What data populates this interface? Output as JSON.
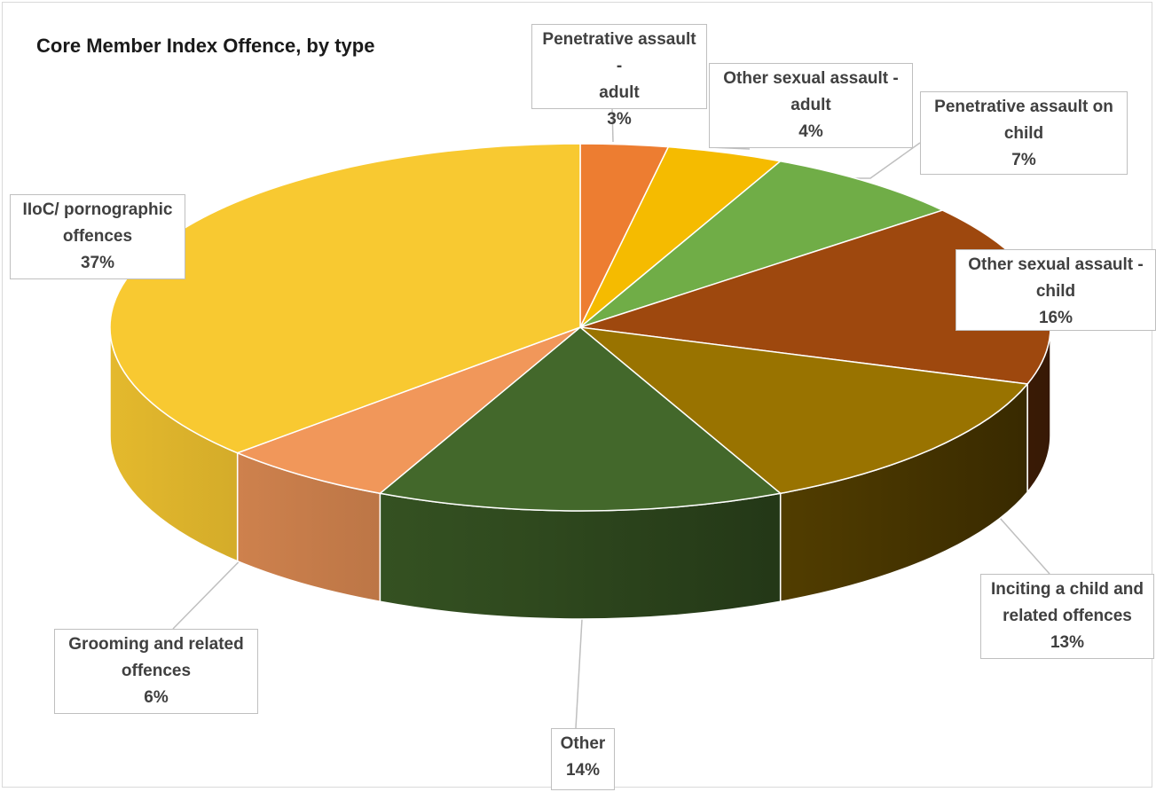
{
  "chart_data": {
    "type": "pie",
    "variant": "3d-pie",
    "title": "Core Member Index Offence, by type",
    "unit": "%",
    "slices": [
      {
        "name_lines": [
          "Penetrative assault -",
          "adult"
        ],
        "value": 3,
        "value_label": "3%",
        "color": "#ED7D31"
      },
      {
        "name_lines": [
          "Other sexual assault -",
          "adult"
        ],
        "value": 4,
        "value_label": "4%",
        "color": "#F5BB00"
      },
      {
        "name_lines": [
          "Penetrative assault on",
          "child"
        ],
        "value": 7,
        "value_label": "7%",
        "color": "#70AD47"
      },
      {
        "name_lines": [
          "Other sexual assault -",
          "child"
        ],
        "value": 16,
        "value_label": "16%",
        "color": "#9E480E"
      },
      {
        "name_lines": [
          "Inciting a child and",
          "related offences"
        ],
        "value": 13,
        "value_label": "13%",
        "color": "#997300"
      },
      {
        "name_lines": [
          "Other"
        ],
        "value": 14,
        "value_label": "14%",
        "color": "#43682B"
      },
      {
        "name_lines": [
          "Grooming and related",
          "offences"
        ],
        "value": 6,
        "value_label": "6%",
        "color": "#F1975A"
      },
      {
        "name_lines": [
          "IIoC/ pornographic",
          "offences"
        ],
        "value": 37,
        "value_label": "37%",
        "color": "#F8C931"
      }
    ],
    "legend": "none",
    "data_labels": "callouts-with-leader-lines"
  }
}
